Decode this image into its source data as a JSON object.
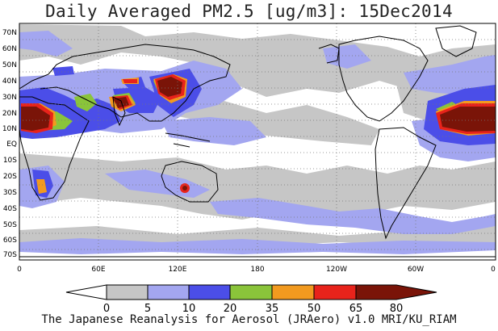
{
  "title": "Daily Averaged PM2.5 [ug/m3]: 15Dec2014",
  "footer": "The Japanese Reanalysis for Aerosol (JRAero) v1.0 MRI/KU_RIAM",
  "lat_labels": [
    "70N",
    "60N",
    "50N",
    "40N",
    "30N",
    "20N",
    "10N",
    "EQ",
    "10S",
    "20S",
    "30S",
    "40S",
    "50S",
    "60S",
    "70S"
  ],
  "lon_labels": [
    "0",
    "60E",
    "120E",
    "180",
    "120W",
    "60W",
    "0"
  ],
  "colorbar": {
    "bins": [
      {
        "color": "#ffffff"
      },
      {
        "color": "#c6c6c6"
      },
      {
        "color": "#a3a6f0"
      },
      {
        "color": "#4b4ee8"
      },
      {
        "color": "#8ac43a"
      },
      {
        "color": "#f29a1f"
      },
      {
        "color": "#e8231b"
      },
      {
        "color": "#7a1408"
      }
    ],
    "labels": [
      "0",
      "5",
      "10",
      "20",
      "35",
      "50",
      "65",
      "80"
    ]
  },
  "colors": {
    "gray": "#c6c6c6",
    "light_blue": "#a3a6f0",
    "blue": "#4b4ee8",
    "green": "#8ac43a",
    "orange": "#f29a1f",
    "red": "#e8231b",
    "darkred": "#7a1408",
    "coast": "#000000"
  }
}
